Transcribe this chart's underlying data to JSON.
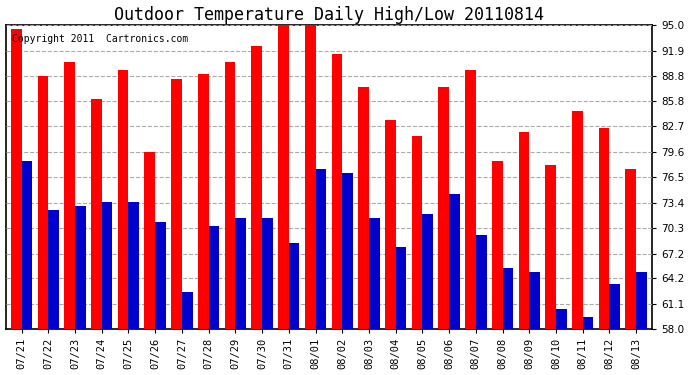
{
  "title": "Outdoor Temperature Daily High/Low 20110814",
  "copyright": "Copyright 2011  Cartronics.com",
  "dates": [
    "07/21",
    "07/22",
    "07/23",
    "07/24",
    "07/25",
    "07/26",
    "07/27",
    "07/28",
    "07/29",
    "07/30",
    "07/31",
    "08/01",
    "08/02",
    "08/03",
    "08/04",
    "08/05",
    "08/06",
    "08/07",
    "08/08",
    "08/09",
    "08/10",
    "08/11",
    "08/12",
    "08/13"
  ],
  "highs": [
    94.5,
    88.8,
    90.5,
    86.0,
    89.5,
    79.5,
    88.5,
    89.0,
    90.5,
    92.5,
    95.0,
    95.0,
    91.5,
    87.5,
    83.5,
    81.5,
    87.5,
    89.5,
    78.5,
    82.0,
    78.0,
    84.5,
    82.5,
    77.5
  ],
  "lows": [
    78.5,
    72.5,
    73.0,
    73.5,
    73.5,
    71.0,
    62.5,
    70.5,
    71.5,
    71.5,
    68.5,
    77.5,
    77.0,
    71.5,
    68.0,
    72.0,
    74.5,
    69.5,
    65.5,
    65.0,
    60.5,
    59.5,
    63.5,
    65.0
  ],
  "high_color": "#ff0000",
  "low_color": "#0000cc",
  "bg_color": "#ffffff",
  "plot_bg_color": "#ffffff",
  "grid_color": "#aaaaaa",
  "ymin": 58.0,
  "ymax": 95.0,
  "yticks": [
    58.0,
    61.1,
    64.2,
    67.2,
    70.3,
    73.4,
    76.5,
    79.6,
    82.7,
    85.8,
    88.8,
    91.9,
    95.0
  ],
  "bar_width": 0.4,
  "title_fontsize": 12,
  "tick_fontsize": 7.5,
  "copyright_fontsize": 7,
  "figwidth": 6.9,
  "figheight": 3.75,
  "dpi": 100
}
